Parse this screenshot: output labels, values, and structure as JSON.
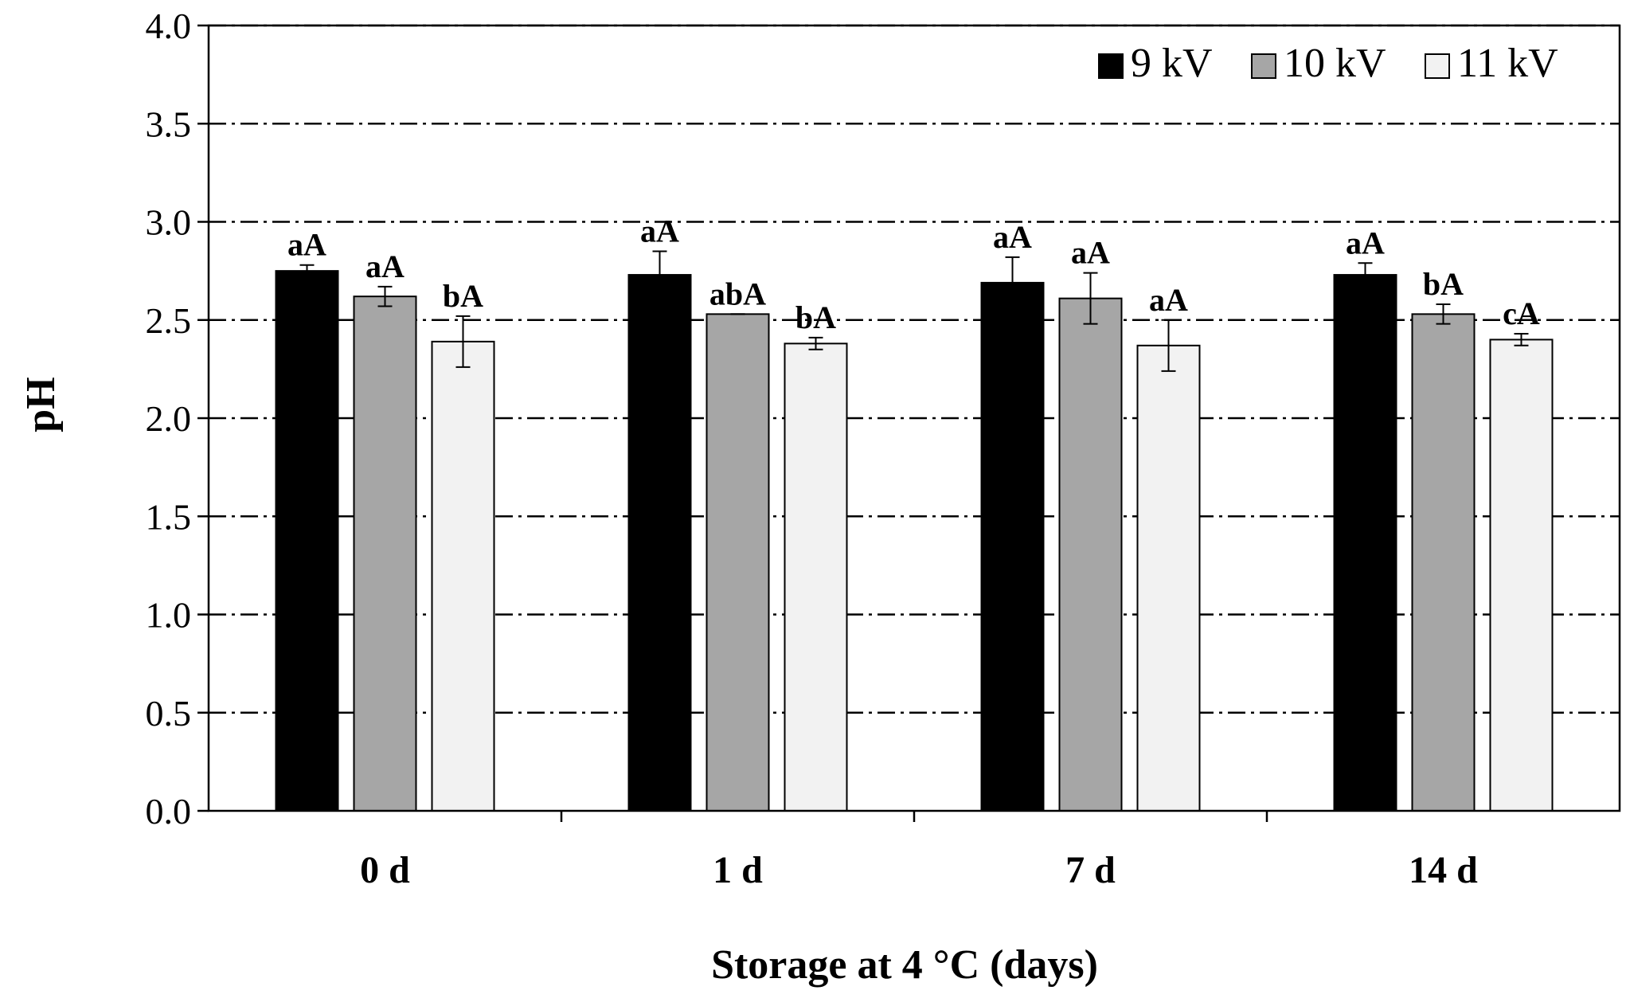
{
  "chart_data": {
    "type": "bar",
    "title": "",
    "xlabel": "Storage at 4 °C (days)",
    "ylabel": "pH",
    "ylim": [
      0,
      4.0
    ],
    "yticks": [
      "0.0",
      "0.5",
      "1.0",
      "1.5",
      "2.0",
      "2.5",
      "3.0",
      "3.5",
      "4.0"
    ],
    "categories": [
      "0 d",
      "1 d",
      "7 d",
      "14 d"
    ],
    "grid": true,
    "legend_position": "top-right",
    "series": [
      {
        "name": "9 kV",
        "color": "#000000",
        "values": [
          2.75,
          2.73,
          2.69,
          2.73
        ],
        "errors": [
          0.03,
          0.12,
          0.13,
          0.06
        ],
        "labels": [
          "aA",
          "aA",
          "aA",
          "aA"
        ]
      },
      {
        "name": "10 kV",
        "color": "#a6a6a6",
        "values": [
          2.62,
          2.53,
          2.61,
          2.53
        ],
        "errors": [
          0.05,
          0.0,
          0.13,
          0.05
        ],
        "labels": [
          "aA",
          "abA",
          "aA",
          "bA"
        ]
      },
      {
        "name": "11 kV",
        "color": "#f2f2f2",
        "values": [
          2.39,
          2.38,
          2.37,
          2.4
        ],
        "errors": [
          0.13,
          0.03,
          0.13,
          0.03
        ],
        "labels": [
          "bA",
          "bA",
          "aA",
          "cA"
        ]
      }
    ]
  }
}
